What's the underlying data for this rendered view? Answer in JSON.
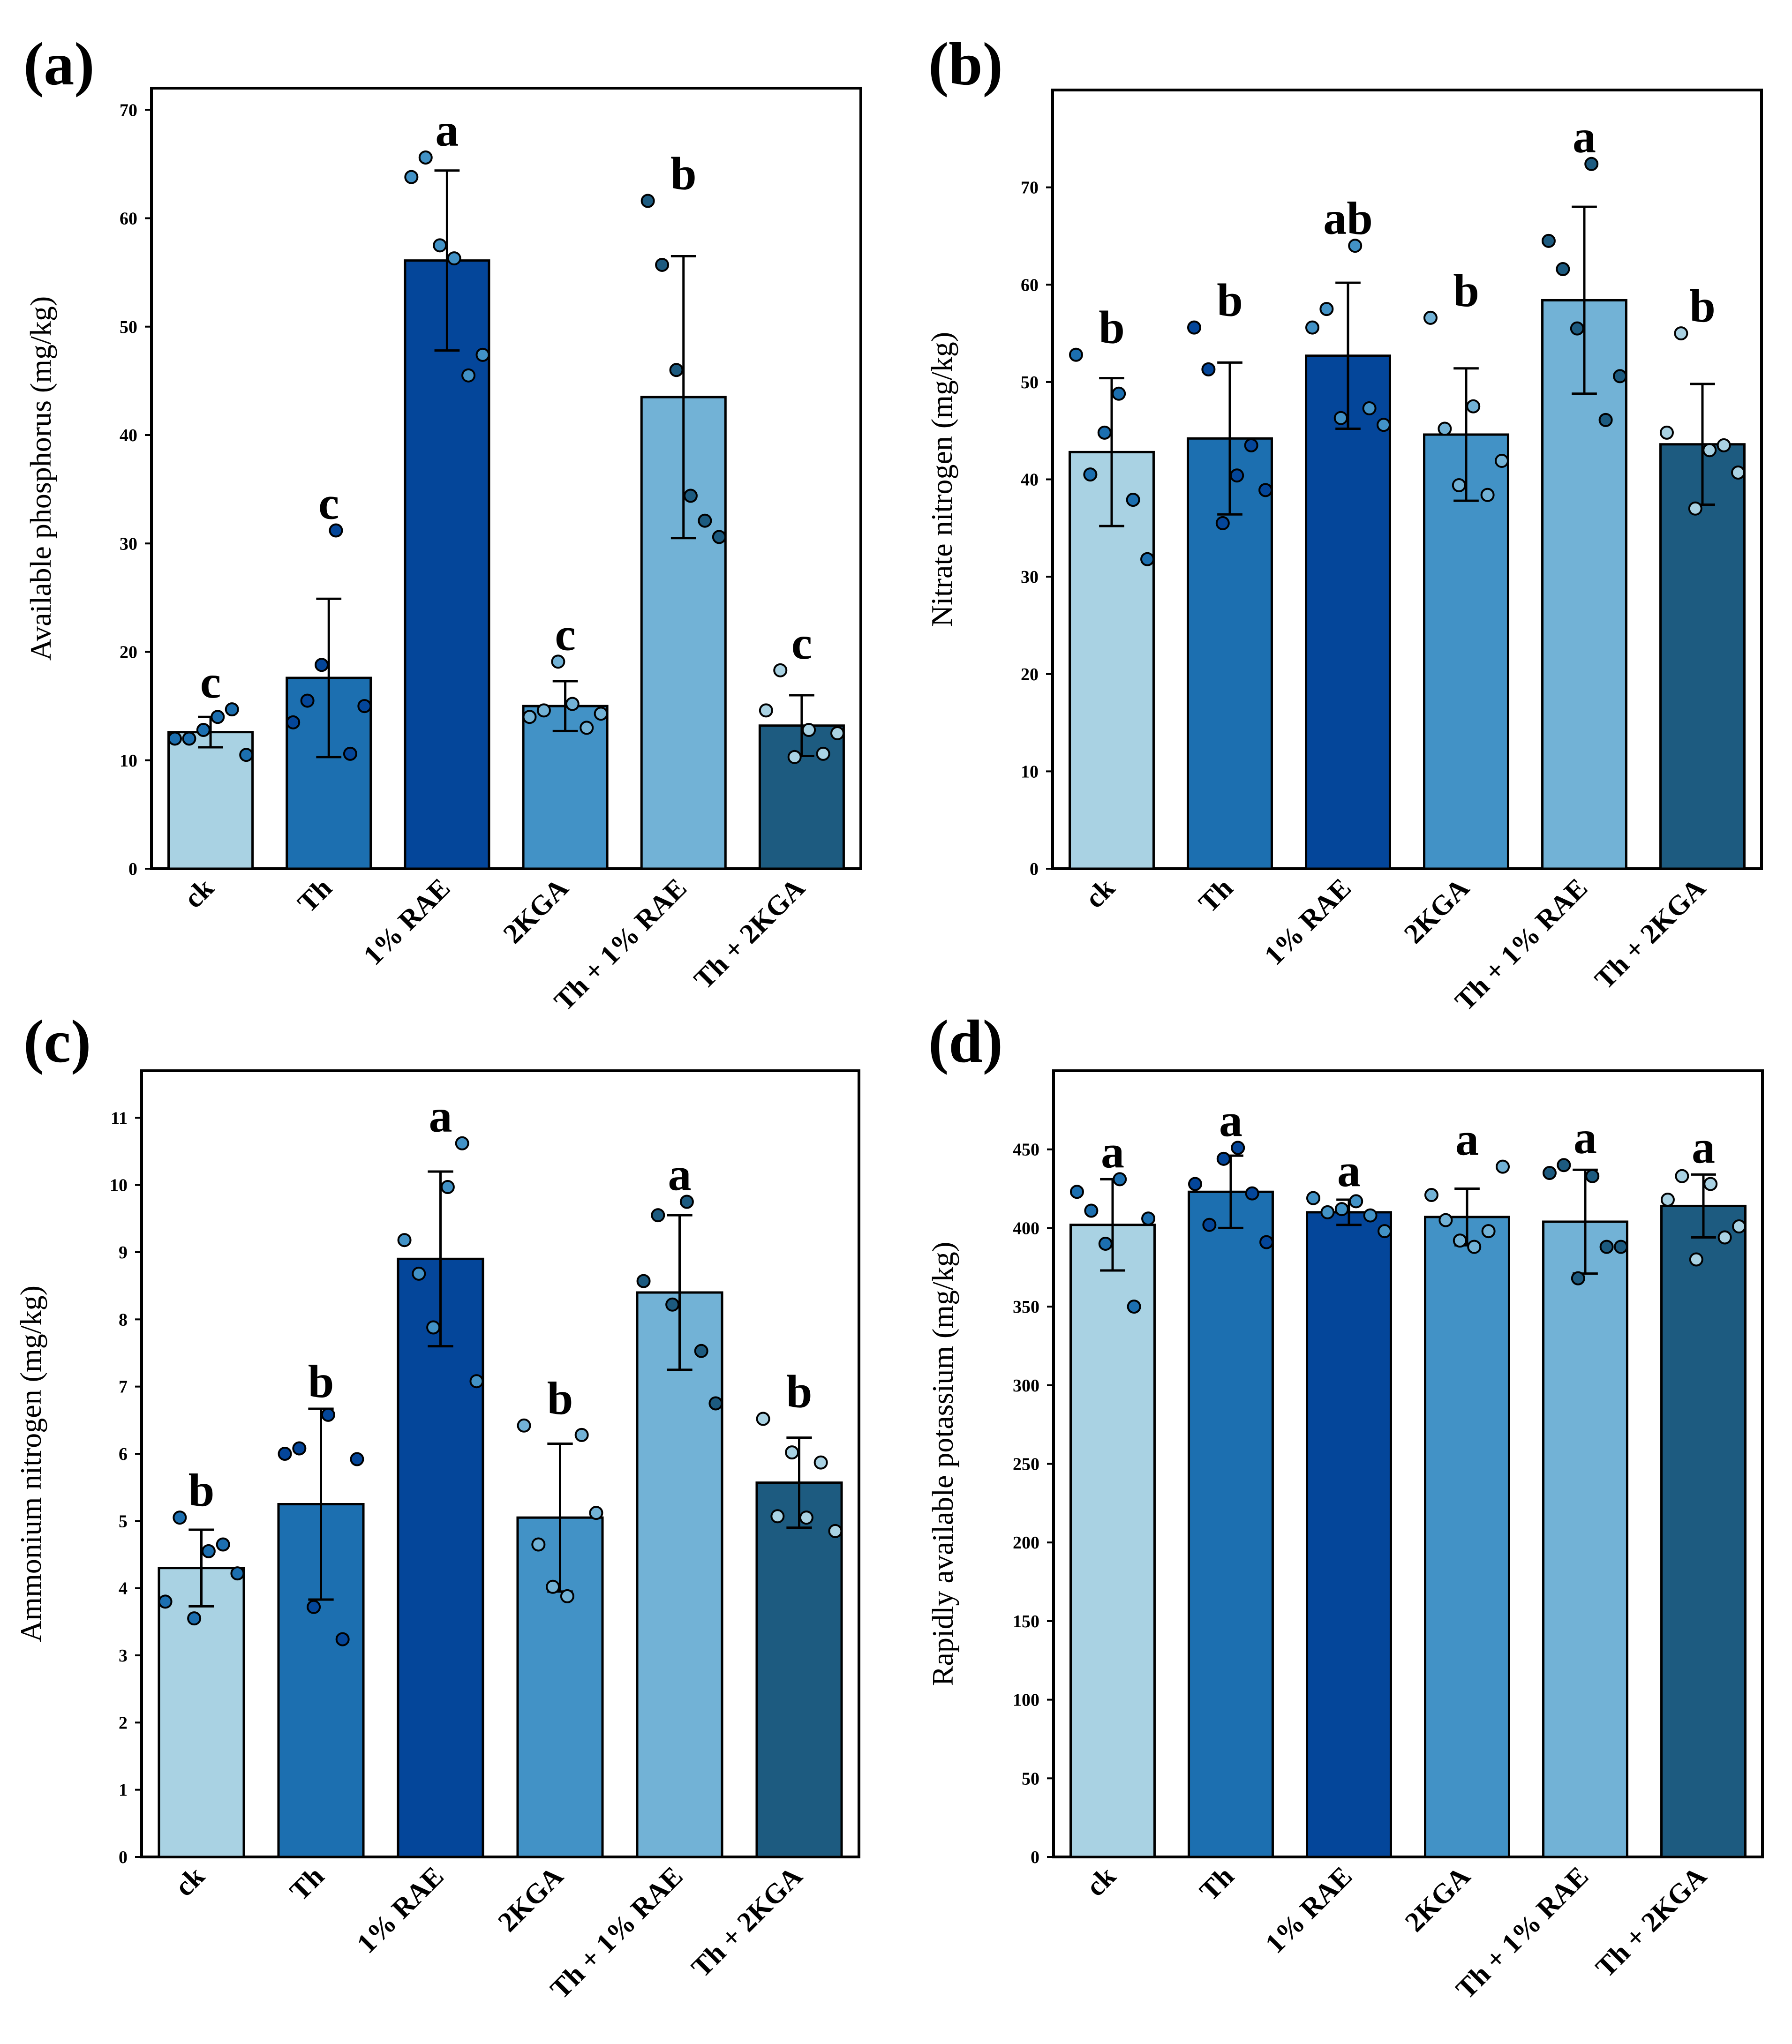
{
  "colors": {
    "categories": [
      "#a9d2e3",
      "#1c6fb0",
      "#04469a",
      "#4292c6",
      "#72b2d6",
      "#1d5b80"
    ],
    "frame": "#000000"
  },
  "chart_data": [
    {
      "panel": "(a)",
      "type": "bar",
      "ylabel": "Available phosphorus (mg/kg)",
      "ylim": [
        0,
        72
      ],
      "yticks": [
        0,
        10,
        20,
        30,
        40,
        50,
        60,
        70
      ],
      "categories": [
        "ck",
        "Th",
        "1% RAE",
        "2KGA",
        "Th + 1% RAE",
        "Th + 2KGA"
      ],
      "values": [
        12.6,
        17.6,
        56.1,
        15.0,
        43.5,
        13.2
      ],
      "errors": [
        1.4,
        7.3,
        8.3,
        2.3,
        13.0,
        2.8
      ],
      "letters": [
        "c",
        "c",
        "a",
        "c",
        "b",
        "c"
      ],
      "points": [
        [
          12.0,
          12.0,
          12.8,
          14.0,
          14.7,
          10.5
        ],
        [
          13.5,
          15.5,
          18.8,
          31.2,
          10.6,
          15.0
        ],
        [
          63.8,
          65.6,
          57.5,
          56.3,
          45.5,
          47.4
        ],
        [
          14.0,
          14.6,
          19.1,
          15.2,
          13.0,
          14.3
        ],
        [
          61.6,
          55.7,
          46.0,
          34.4,
          32.1,
          30.6
        ],
        [
          14.6,
          18.3,
          10.3,
          12.8,
          10.6,
          12.5
        ]
      ]
    },
    {
      "panel": "(b)",
      "type": "bar",
      "ylabel": "Nitrate nitrogen (mg/kg)",
      "ylim": [
        0,
        80
      ],
      "yticks": [
        0,
        10,
        20,
        30,
        40,
        50,
        60,
        70
      ],
      "categories": [
        "ck",
        "Th",
        "1% RAE",
        "2KGA",
        "Th + 1% RAE",
        "Th + 2KGA"
      ],
      "values": [
        42.8,
        44.2,
        52.7,
        44.6,
        58.4,
        43.6
      ],
      "errors": [
        7.6,
        7.8,
        7.5,
        6.8,
        9.6,
        6.2
      ],
      "letters": [
        "b",
        "b",
        "ab",
        "b",
        "a",
        "b"
      ],
      "points": [
        [
          52.8,
          40.5,
          44.8,
          48.8,
          37.9,
          31.8
        ],
        [
          55.6,
          51.3,
          35.5,
          40.4,
          43.5,
          38.9
        ],
        [
          55.6,
          57.5,
          46.3,
          64.0,
          47.3,
          45.6
        ],
        [
          56.6,
          45.2,
          39.4,
          47.5,
          38.4,
          41.9
        ],
        [
          64.5,
          61.6,
          55.5,
          72.4,
          46.1,
          50.6
        ],
        [
          44.8,
          55.0,
          37.0,
          43.0,
          43.5,
          40.7
        ]
      ]
    },
    {
      "panel": "(c)",
      "type": "bar",
      "ylabel": "Ammonium nitrogen (mg/kg)",
      "ylim": [
        0,
        11.7
      ],
      "yticks": [
        0,
        1,
        2,
        3,
        4,
        5,
        6,
        7,
        8,
        9,
        10,
        11
      ],
      "categories": [
        "ck",
        "Th",
        "1% RAE",
        "2KGA",
        "Th + 1% RAE",
        "Th + 2KGA"
      ],
      "values": [
        4.3,
        5.25,
        8.9,
        5.05,
        8.4,
        5.57
      ],
      "errors": [
        0.57,
        1.42,
        1.3,
        1.1,
        1.15,
        0.67
      ],
      "letters": [
        "b",
        "b",
        "a",
        "b",
        "a",
        "b"
      ],
      "points": [
        [
          3.8,
          5.05,
          3.55,
          4.55,
          4.65,
          4.22
        ],
        [
          6.0,
          6.08,
          3.72,
          6.58,
          3.24,
          5.92
        ],
        [
          9.18,
          8.68,
          7.88,
          9.97,
          10.62,
          7.08
        ],
        [
          6.42,
          4.65,
          4.02,
          3.88,
          6.28,
          5.12
        ],
        [
          8.57,
          9.55,
          8.22,
          9.75,
          7.53,
          6.75
        ],
        [
          6.52,
          5.07,
          6.02,
          5.05,
          5.87,
          4.85
        ]
      ]
    },
    {
      "panel": "(d)",
      "type": "bar",
      "ylabel": "Rapidly available potassium (mg/kg)",
      "ylim": [
        0,
        500
      ],
      "yticks": [
        0,
        50,
        100,
        150,
        200,
        250,
        300,
        350,
        400,
        450
      ],
      "categories": [
        "ck",
        "Th",
        "1% RAE",
        "2KGA",
        "Th + 1% RAE",
        "Th + 2KGA"
      ],
      "values": [
        402,
        423,
        410,
        407,
        404,
        414
      ],
      "errors": [
        29,
        23,
        8,
        18,
        33,
        20
      ],
      "letters": [
        "a",
        "a",
        "a",
        "a",
        "a",
        "a"
      ],
      "points": [
        [
          423,
          411,
          390,
          431,
          350,
          406
        ],
        [
          428,
          402,
          444,
          451,
          422,
          391
        ],
        [
          419,
          410,
          412,
          417,
          408,
          398
        ],
        [
          421,
          405,
          392,
          388,
          398,
          439
        ],
        [
          435,
          440,
          368,
          433,
          388,
          388
        ],
        [
          418,
          433,
          380,
          428,
          394,
          401
        ]
      ]
    }
  ]
}
